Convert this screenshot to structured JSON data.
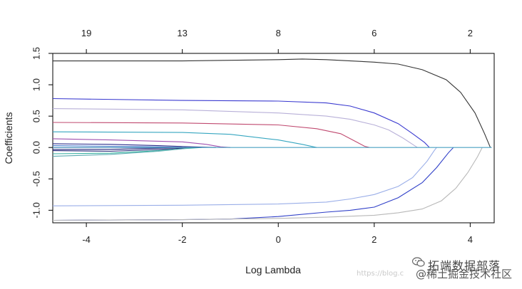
{
  "chart_data": {
    "type": "line",
    "xlabel": "Log Lambda",
    "ylabel": "Coefficients",
    "xlim": [
      -4.7,
      4.5
    ],
    "ylim": [
      -1.2,
      1.5
    ],
    "x_ticks": [
      -4,
      -2,
      0,
      2,
      4
    ],
    "y_ticks": [
      -1.0,
      -0.5,
      0.0,
      0.5,
      1.0,
      1.5
    ],
    "top_axis": {
      "positions": [
        -4,
        -2,
        0,
        2,
        4
      ],
      "labels": [
        "19",
        "13",
        "8",
        "6",
        "2"
      ]
    },
    "grid": false,
    "legend": "none",
    "series": [
      {
        "color": "#333333",
        "points": [
          [
            -4.7,
            1.38
          ],
          [
            -2,
            1.38
          ],
          [
            0,
            1.4
          ],
          [
            0.5,
            1.41
          ],
          [
            1,
            1.4
          ],
          [
            2,
            1.36
          ],
          [
            2.5,
            1.33
          ],
          [
            3,
            1.24
          ],
          [
            3.5,
            1.08
          ],
          [
            3.8,
            0.88
          ],
          [
            4.1,
            0.55
          ],
          [
            4.3,
            0.22
          ],
          [
            4.42,
            0.0
          ]
        ]
      },
      {
        "color": "#3a3ad0",
        "points": [
          [
            -4.7,
            0.78
          ],
          [
            -2,
            0.75
          ],
          [
            0,
            0.74
          ],
          [
            1,
            0.71
          ],
          [
            1.5,
            0.66
          ],
          [
            2,
            0.55
          ],
          [
            2.5,
            0.38
          ],
          [
            2.8,
            0.22
          ],
          [
            3.05,
            0.08
          ],
          [
            3.15,
            0.0
          ]
        ]
      },
      {
        "color": "#b8b0d8",
        "points": [
          [
            -4.7,
            0.62
          ],
          [
            -2,
            0.6
          ],
          [
            0,
            0.55
          ],
          [
            1,
            0.5
          ],
          [
            1.5,
            0.45
          ],
          [
            2,
            0.36
          ],
          [
            2.3,
            0.28
          ],
          [
            2.6,
            0.15
          ],
          [
            2.8,
            0.05
          ],
          [
            2.9,
            0.0
          ]
        ]
      },
      {
        "color": "#c04a70",
        "points": [
          [
            -4.7,
            0.4
          ],
          [
            -2,
            0.39
          ],
          [
            0,
            0.36
          ],
          [
            0.8,
            0.3
          ],
          [
            1.3,
            0.22
          ],
          [
            1.6,
            0.1
          ],
          [
            1.8,
            0.02
          ],
          [
            1.9,
            0.0
          ]
        ]
      },
      {
        "color": "#36a6c0",
        "points": [
          [
            -4.7,
            0.25
          ],
          [
            -2,
            0.24
          ],
          [
            -1,
            0.21
          ],
          [
            0,
            0.12
          ],
          [
            0.5,
            0.05
          ],
          [
            0.8,
            0.0
          ]
        ]
      },
      {
        "color": "#a050b0",
        "points": [
          [
            -4.7,
            0.14
          ],
          [
            -3.5,
            0.12
          ],
          [
            -2,
            0.09
          ],
          [
            -1.5,
            0.05
          ],
          [
            -1.2,
            0.01
          ],
          [
            -1,
            0.0
          ]
        ]
      },
      {
        "color": "#2a2a8a",
        "points": [
          [
            -4.7,
            0.06
          ],
          [
            -3.5,
            0.05
          ],
          [
            -2.5,
            0.03
          ],
          [
            -1.8,
            0.01
          ],
          [
            -1.3,
            0.0
          ]
        ]
      },
      {
        "color": "#5080d0",
        "points": [
          [
            -4.7,
            0.03
          ],
          [
            -3.5,
            0.02
          ],
          [
            -2.5,
            0.01
          ],
          [
            -2,
            0.0
          ]
        ]
      },
      {
        "color": "#8a6ab0",
        "points": [
          [
            -4.7,
            0.0
          ],
          [
            -3.5,
            0.0
          ],
          [
            -2.2,
            0.0
          ]
        ]
      },
      {
        "color": "#20207a",
        "points": [
          [
            -4.7,
            -0.03
          ],
          [
            -3.5,
            -0.03
          ],
          [
            -2.5,
            -0.01
          ],
          [
            -2,
            0.0
          ]
        ]
      },
      {
        "color": "#2a2a7a",
        "points": [
          [
            -4.7,
            -0.05
          ],
          [
            -3.5,
            -0.06
          ],
          [
            -2.5,
            -0.03
          ],
          [
            -2,
            -0.01
          ],
          [
            -1.8,
            0.0
          ]
        ]
      },
      {
        "color": "#36b0a0",
        "points": [
          [
            -4.7,
            -0.1
          ],
          [
            -3.5,
            -0.09
          ],
          [
            -2.5,
            -0.05
          ],
          [
            -2,
            -0.02
          ],
          [
            -1.6,
            0.0
          ]
        ]
      },
      {
        "color": "#5aaab0",
        "points": [
          [
            -4.7,
            -0.14
          ],
          [
            -3.5,
            -0.11
          ],
          [
            -2.5,
            -0.06
          ],
          [
            -2,
            -0.02
          ],
          [
            -1.8,
            0.0
          ]
        ]
      },
      {
        "color": "#9aaee8",
        "points": [
          [
            -4.7,
            -0.93
          ],
          [
            -2,
            -0.92
          ],
          [
            0,
            -0.9
          ],
          [
            1,
            -0.87
          ],
          [
            1.5,
            -0.82
          ],
          [
            2,
            -0.75
          ],
          [
            2.5,
            -0.62
          ],
          [
            2.8,
            -0.48
          ],
          [
            3.1,
            -0.22
          ],
          [
            3.25,
            -0.05
          ],
          [
            3.3,
            0.0
          ]
        ]
      },
      {
        "color": "#2f3fc8",
        "points": [
          [
            -4.7,
            -1.16
          ],
          [
            -2,
            -1.15
          ],
          [
            -1,
            -1.14
          ],
          [
            0,
            -1.1
          ],
          [
            1,
            -1.03
          ],
          [
            1.5,
            -1.0
          ],
          [
            2,
            -0.95
          ],
          [
            2.5,
            -0.8
          ],
          [
            3,
            -0.56
          ],
          [
            3.3,
            -0.32
          ],
          [
            3.55,
            -0.08
          ],
          [
            3.65,
            0.0
          ]
        ]
      },
      {
        "color": "#b8b8b8",
        "points": [
          [
            -4.7,
            -1.16
          ],
          [
            -2,
            -1.15
          ],
          [
            0,
            -1.13
          ],
          [
            1,
            -1.11
          ],
          [
            2,
            -1.08
          ],
          [
            2.5,
            -1.04
          ],
          [
            3,
            -0.98
          ],
          [
            3.4,
            -0.85
          ],
          [
            3.7,
            -0.65
          ],
          [
            3.95,
            -0.4
          ],
          [
            4.15,
            -0.15
          ],
          [
            4.25,
            0.0
          ]
        ]
      },
      {
        "color": "#4aa0c0",
        "points": [
          [
            -4.7,
            0.0
          ],
          [
            4.45,
            0.0
          ]
        ]
      }
    ]
  },
  "watermark": {
    "url": "https://blog.c",
    "brand": "拓端数据部落",
    "subtitle": "@稀土掘金技术社区",
    "logo_icon": "wechat-icon"
  }
}
